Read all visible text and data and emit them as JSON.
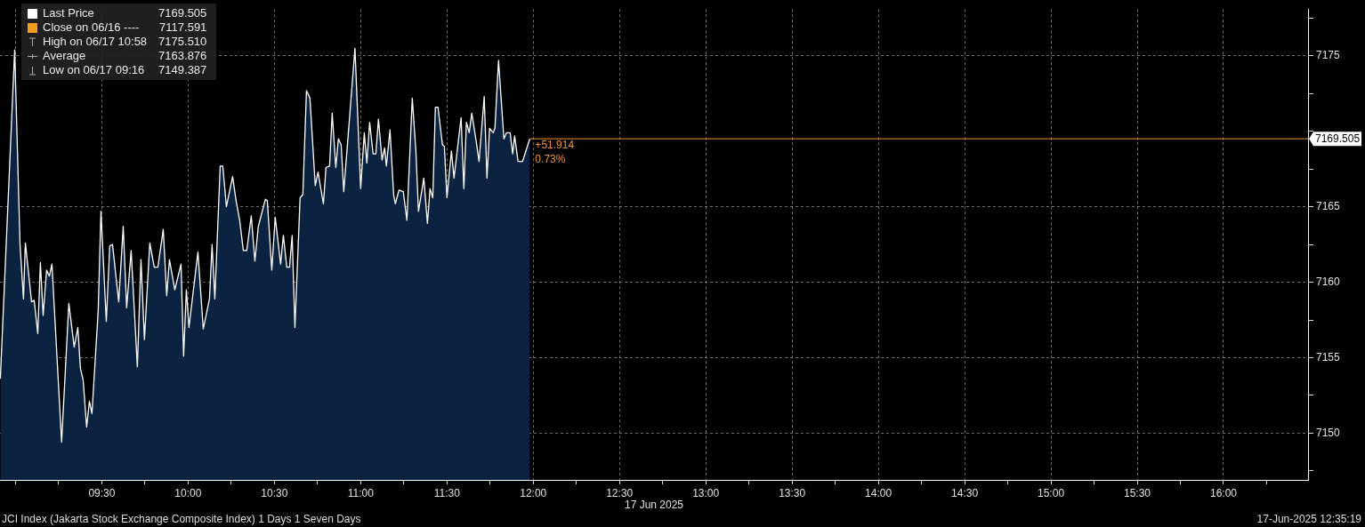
{
  "chart_data": {
    "type": "area",
    "xlabel": "17 Jun 2025",
    "legend": "top left",
    "grid": true,
    "marker": "none",
    "line_style": "solid",
    "xlim": [
      8.91,
      16.49
    ],
    "ylim": [
      7146.9,
      7178.1
    ],
    "xticks": [
      {
        "value": 9,
        "label": null
      },
      {
        "value": 9.25,
        "label": null
      },
      {
        "value": 9.5,
        "label": "09:30"
      },
      {
        "value": 9.75,
        "label": null
      },
      {
        "value": 10,
        "label": "10:00"
      },
      {
        "value": 10.25,
        "label": null
      },
      {
        "value": 10.5,
        "label": "10:30"
      },
      {
        "value": 10.75,
        "label": null
      },
      {
        "value": 11,
        "label": "11:00"
      },
      {
        "value": 11.25,
        "label": null
      },
      {
        "value": 11.5,
        "label": "11:30"
      },
      {
        "value": 11.75,
        "label": null
      },
      {
        "value": 12,
        "label": "12:00"
      },
      {
        "value": 12.25,
        "label": null
      },
      {
        "value": 12.5,
        "label": "12:30"
      },
      {
        "value": 12.75,
        "label": null
      },
      {
        "value": 13,
        "label": "13:00"
      },
      {
        "value": 13.25,
        "label": null
      },
      {
        "value": 13.5,
        "label": "13:30"
      },
      {
        "value": 13.75,
        "label": null
      },
      {
        "value": 14,
        "label": "14:00"
      },
      {
        "value": 14.25,
        "label": null
      },
      {
        "value": 14.5,
        "label": "14:30"
      },
      {
        "value": 14.75,
        "label": null
      },
      {
        "value": 15,
        "label": "15:00"
      },
      {
        "value": 15.25,
        "label": null
      },
      {
        "value": 15.5,
        "label": "15:30"
      },
      {
        "value": 15.75,
        "label": null
      },
      {
        "value": 16,
        "label": "16:00"
      },
      {
        "value": 16.25,
        "label": null
      }
    ],
    "yticks": [
      {
        "value": 7147.5,
        "label": null
      },
      7150,
      {
        "value": 7152.5,
        "label": null
      },
      7155,
      {
        "value": 7157.5,
        "label": null
      },
      7160,
      {
        "value": 7162.5,
        "label": null
      },
      7165,
      {
        "value": 7167.5,
        "label": null
      },
      {
        "value": 7170,
        "label": null
      },
      {
        "value": 7172.5,
        "label": null
      },
      7175,
      {
        "value": 7177.5,
        "label": null
      }
    ],
    "series": [
      {
        "name": "Last Price",
        "color": "#ffffff",
        "x": [
          8.912,
          8.995,
          9.026,
          9.046,
          9.057,
          9.093,
          9.108,
          9.129,
          9.144,
          9.16,
          9.18,
          9.196,
          9.211,
          9.267,
          9.309,
          9.34,
          9.361,
          9.376,
          9.392,
          9.412,
          9.428,
          9.443,
          9.479,
          9.495,
          9.526,
          9.546,
          9.562,
          9.598,
          9.624,
          9.644,
          9.67,
          9.706,
          9.727,
          9.747,
          9.778,
          9.804,
          9.825,
          9.856,
          9.876,
          9.892,
          9.923,
          9.959,
          9.974,
          9.99,
          10.005,
          10.057,
          10.088,
          10.124,
          10.139,
          10.155,
          10.186,
          10.201,
          10.222,
          10.258,
          10.278,
          10.299,
          10.32,
          10.34,
          10.366,
          10.387,
          10.407,
          10.448,
          10.459,
          10.485,
          10.505,
          10.536,
          10.552,
          10.572,
          10.588,
          10.603,
          10.619,
          10.649,
          10.665,
          10.686,
          10.706,
          10.737,
          10.753,
          10.784,
          10.799,
          10.82,
          10.835,
          10.856,
          10.871,
          10.887,
          10.902,
          10.967,
          11.0,
          11.021,
          11.036,
          11.052,
          11.072,
          11.088,
          11.103,
          11.124,
          11.139,
          11.149,
          11.17,
          11.191,
          11.201,
          11.222,
          11.247,
          11.268,
          11.299,
          11.32,
          11.335,
          11.366,
          11.387,
          11.402,
          11.418,
          11.433,
          11.448,
          11.474,
          11.485,
          11.5,
          11.526,
          11.541,
          11.582,
          11.598,
          11.613,
          11.629,
          11.644,
          11.67,
          11.686,
          11.716,
          11.732,
          11.747,
          11.768,
          11.778,
          11.799,
          11.83,
          11.845,
          11.866,
          11.881,
          11.892,
          11.912,
          11.938,
          11.98
        ],
        "values": [
          7153.6,
          7175.4,
          7162.5,
          7158.9,
          7162.6,
          7158.7,
          7158.8,
          7156.6,
          7161.3,
          7157.8,
          7160.8,
          7160.4,
          7161.2,
          7149.4,
          7158.6,
          7155.7,
          7157.0,
          7154.3,
          7153.5,
          7150.4,
          7152.1,
          7151.3,
          7158.1,
          7164.7,
          7157.4,
          7162.4,
          7162.5,
          7158.7,
          7163.7,
          7158.3,
          7162.1,
          7154.4,
          7161.5,
          7156.2,
          7162.6,
          7161.0,
          7161.0,
          7163.5,
          7159.1,
          7161.5,
          7159.5,
          7161.2,
          7155.1,
          7159.5,
          7157.0,
          7162.0,
          7156.9,
          7158.9,
          7162.5,
          7158.9,
          7167.7,
          7167.7,
          7165.0,
          7167.0,
          7165.4,
          7164.1,
          7162.1,
          7162.1,
          7164.4,
          7161.4,
          7163.7,
          7165.5,
          7165.4,
          7160.8,
          7164.3,
          7161.2,
          7163.1,
          7161.0,
          7161.0,
          7163.1,
          7157.0,
          7165.6,
          7165.8,
          7172.7,
          7172.2,
          7166.4,
          7167.3,
          7165.2,
          7167.6,
          7167.7,
          7171.2,
          7167.6,
          7169.5,
          7169.1,
          7166.0,
          7175.5,
          7166.2,
          7169.9,
          7167.9,
          7170.6,
          7168.5,
          7168.5,
          7170.8,
          7168.1,
          7168.9,
          7167.7,
          7170.1,
          7165.8,
          7165.2,
          7166.1,
          7166.0,
          7164.1,
          7172.2,
          7168.7,
          7164.7,
          7166.9,
          7163.9,
          7166.2,
          7165.6,
          7171.6,
          7171.6,
          7169.1,
          7169.0,
          7165.6,
          7168.7,
          7166.9,
          7170.9,
          7166.2,
          7170.6,
          7169.9,
          7171.2,
          7169.3,
          7168.0,
          7172.3,
          7166.9,
          7170.2,
          7169.9,
          7170.2,
          7174.7,
          7169.5,
          7169.9,
          7169.9,
          7168.5,
          7169.7,
          7168.0,
          7168.0,
          7169.5
        ]
      }
    ],
    "ref_lines": [
      {
        "axis": "y",
        "value": 7169.505,
        "label": "7169.505",
        "color": "#f0922b"
      }
    ],
    "annotations": [
      "7169.505",
      "Close on 06/16 ---- 7117.591",
      "High on 06/17 10:58 7175.510",
      "Average 7163.876",
      "Low on 06/17 09:16 7149.387",
      {
        "text": "+51.914",
        "x": 11.98,
        "y": 7169.505
      },
      {
        "text": "0.73%",
        "x": 11.98,
        "y": 7169.505
      },
      "JCI Index (Jakarta Stock Exchange Composite Index) 1 Days 1 Seven Days",
      "17-Jun-2025 12:35:19"
    ]
  }
}
